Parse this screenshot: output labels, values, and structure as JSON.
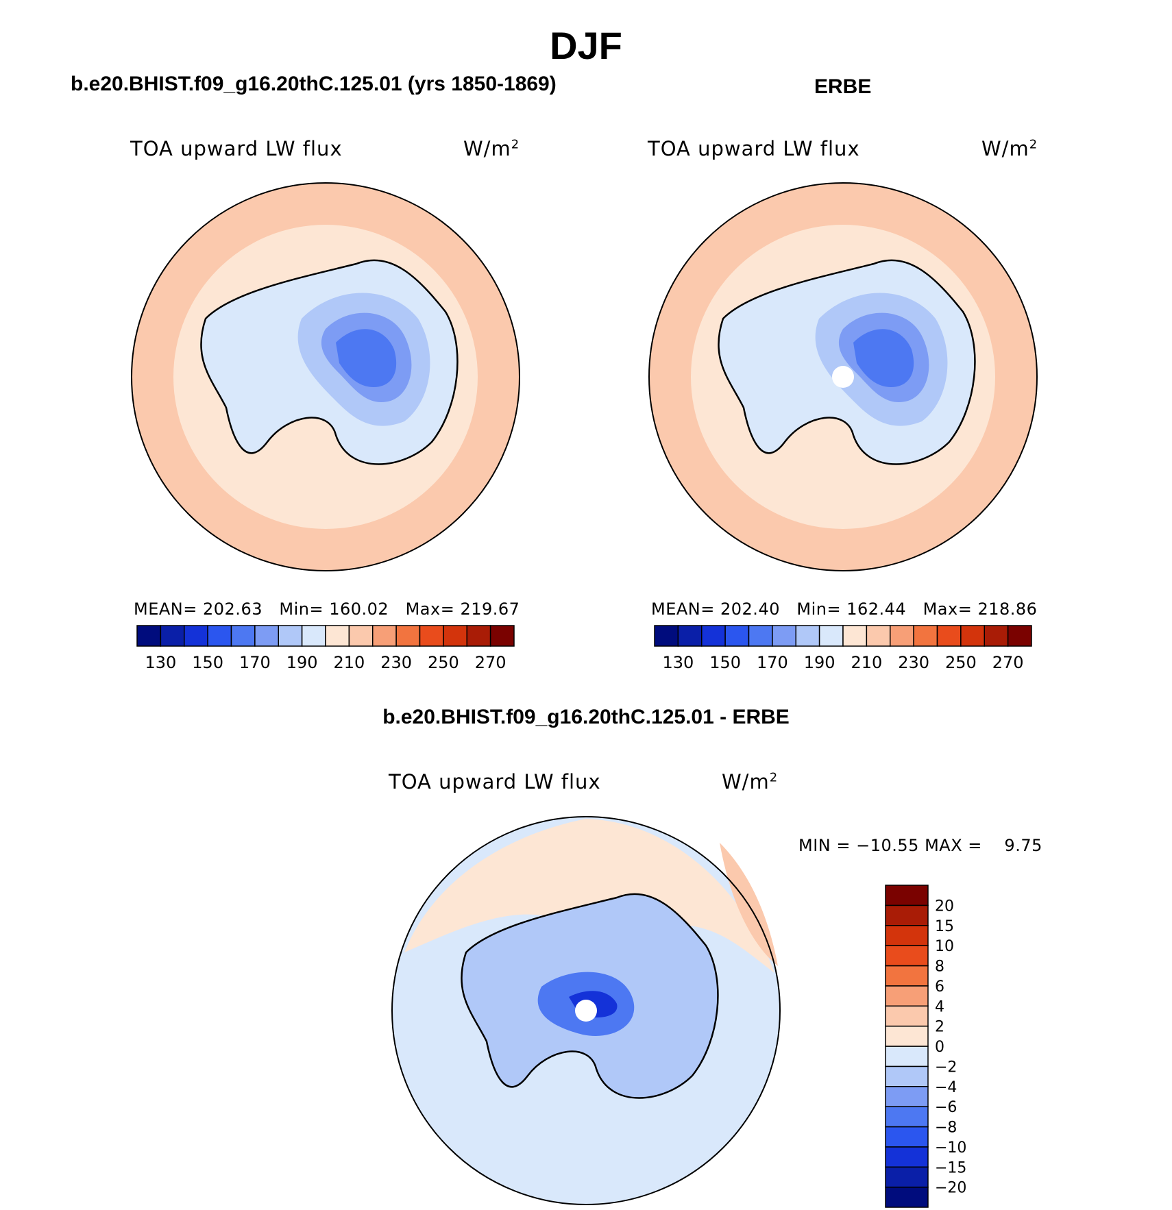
{
  "figure": {
    "title": "DJF",
    "panel_left_title": "b.e20.BHIST.f09_g16.20thC.125.01 (yrs 1850-1869)",
    "panel_right_title": "ERBE",
    "panel_bottom_title": "b.e20.BHIST.f09_g16.20thC.125.01 - ERBE",
    "variable_label": "TOA upward LW flux",
    "units_prefix": "W/m",
    "units_superscript": "2"
  },
  "chart_data": [
    {
      "type": "heatmap",
      "projection": "south-polar-stereographic",
      "title": "b.e20.BHIST.f09_g16.20thC.125.01 (yrs 1850-1869)",
      "variable": "TOA upward LW flux",
      "units": "W/m2",
      "stats": {
        "mean_label": "MEAN=",
        "mean": "202.63",
        "min_label": "Min=",
        "min": "160.02",
        "max_label": "Max=",
        "max": "219.67"
      },
      "colorbar_levels": [
        130,
        140,
        150,
        160,
        170,
        180,
        190,
        200,
        210,
        220,
        230,
        240,
        250,
        260,
        270
      ],
      "colorbar_ticks": [
        "130",
        "150",
        "170",
        "190",
        "210",
        "230",
        "250",
        "270"
      ],
      "colorbar_colors": [
        "#000c7d",
        "#0a1fa8",
        "#1432d8",
        "#2b56ef",
        "#4d78f2",
        "#7d9cf4",
        "#b0c8f8",
        "#d9e8fb",
        "#fde6d4",
        "#fbc9ad",
        "#f79f77",
        "#f2743f",
        "#e94c1c",
        "#d3340c",
        "#a91c06",
        "#7a0200"
      ]
    },
    {
      "type": "heatmap",
      "projection": "south-polar-stereographic",
      "title": "ERBE",
      "variable": "TOA upward LW flux",
      "units": "W/m2",
      "stats": {
        "mean_label": "MEAN=",
        "mean": "202.40",
        "min_label": "Min=",
        "min": "162.44",
        "max_label": "Max=",
        "max": "218.86"
      },
      "colorbar_levels": [
        130,
        140,
        150,
        160,
        170,
        180,
        190,
        200,
        210,
        220,
        230,
        240,
        250,
        260,
        270
      ],
      "colorbar_ticks": [
        "130",
        "150",
        "170",
        "190",
        "210",
        "230",
        "250",
        "270"
      ],
      "colorbar_colors": [
        "#000c7d",
        "#0a1fa8",
        "#1432d8",
        "#2b56ef",
        "#4d78f2",
        "#7d9cf4",
        "#b0c8f8",
        "#d9e8fb",
        "#fde6d4",
        "#fbc9ad",
        "#f79f77",
        "#f2743f",
        "#e94c1c",
        "#d3340c",
        "#a91c06",
        "#7a0200"
      ]
    },
    {
      "type": "heatmap",
      "projection": "south-polar-stereographic",
      "title": "b.e20.BHIST.f09_g16.20thC.125.01 - ERBE",
      "variable": "TOA upward LW flux",
      "units": "W/m2",
      "stats": {
        "min_label": "MIN =",
        "min": "−10.55",
        "max_label": "MAX =",
        "max": "9.75"
      },
      "colorbar_levels": [
        "−20",
        "−15",
        "−10",
        "−8",
        "−6",
        "−4",
        "−2",
        "0",
        "2",
        "4",
        "6",
        "8",
        "10",
        "15",
        "20"
      ],
      "colorbar_colors": [
        "#000c7d",
        "#0a1fa8",
        "#1432d8",
        "#2b56ef",
        "#4d78f2",
        "#7d9cf4",
        "#b0c8f8",
        "#d9e8fb",
        "#fde6d4",
        "#fbc9ad",
        "#f79f77",
        "#f2743f",
        "#e94c1c",
        "#d3340c",
        "#a91c06",
        "#7a0200"
      ]
    }
  ]
}
